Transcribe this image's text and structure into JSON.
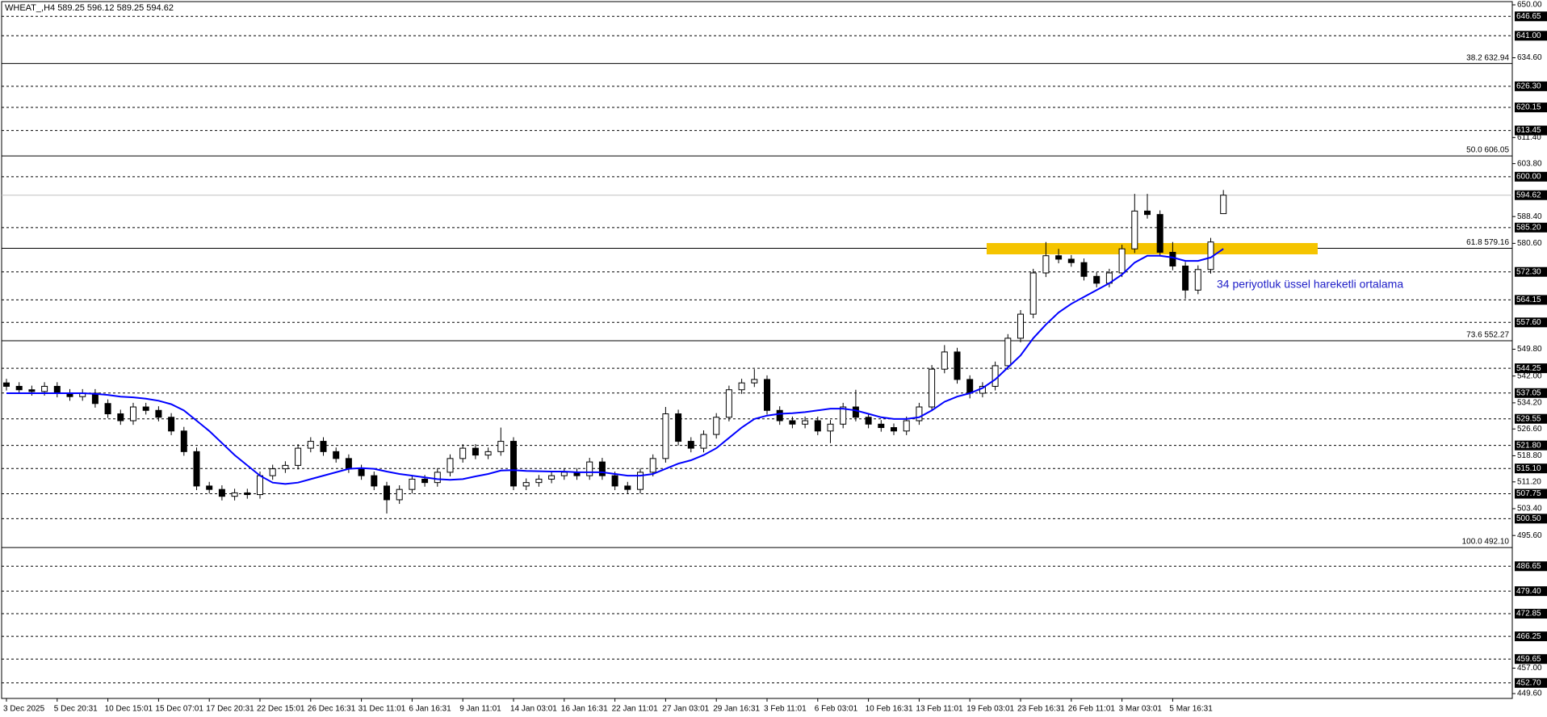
{
  "chart_data": {
    "type": "candlestick",
    "title": "WHEAT_,H4  589.25 596.12 589.25 594.62",
    "annotation": "34 periyotluk üssel hareketli ortalama",
    "bull_color": "#ffffff",
    "bear_color": "#000000",
    "ylim": [
      449.6,
      650
    ],
    "yticks": [
      {
        "value": 650,
        "label": "650.00"
      },
      {
        "value": 634.6,
        "label": "634.60"
      },
      {
        "value": 611.4,
        "label": "611.40"
      },
      {
        "value": 603.8,
        "label": "603.80"
      },
      {
        "value": 588.4,
        "label": "588.40"
      },
      {
        "value": 580.6,
        "label": "580.60"
      },
      {
        "value": 549.8,
        "label": "549.80"
      },
      {
        "value": 542,
        "label": "542.00"
      },
      {
        "value": 534.2,
        "label": "534.20"
      },
      {
        "value": 526.6,
        "label": "526.60"
      },
      {
        "value": 518.8,
        "label": "518.80"
      },
      {
        "value": 511.2,
        "label": "511.20"
      },
      {
        "value": 503.4,
        "label": "503.40"
      },
      {
        "value": 495.6,
        "label": "495.60"
      },
      {
        "value": 457,
        "label": "457.00"
      },
      {
        "value": 449.6,
        "label": "449.60"
      }
    ],
    "levels": [
      {
        "value": 646.65,
        "label": "646.65"
      },
      {
        "value": 641,
        "label": "641.00"
      },
      {
        "value": 626.3,
        "label": "626.30"
      },
      {
        "value": 620.15,
        "label": "620.15"
      },
      {
        "value": 613.45,
        "label": "613.45"
      },
      {
        "value": 600,
        "label": "600.00"
      },
      {
        "value": 585.2,
        "label": "585.20"
      },
      {
        "value": 572.3,
        "label": "572.30"
      },
      {
        "value": 564.15,
        "label": "564.15"
      },
      {
        "value": 557.6,
        "label": "557.60"
      },
      {
        "value": 544.25,
        "label": "544.25"
      },
      {
        "value": 537.05,
        "label": "537.05"
      },
      {
        "value": 529.55,
        "label": "529.55"
      },
      {
        "value": 521.8,
        "label": "521.80"
      },
      {
        "value": 515.1,
        "label": "515.10"
      },
      {
        "value": 507.75,
        "label": "507.75"
      },
      {
        "value": 500.5,
        "label": "500.50"
      },
      {
        "value": 486.65,
        "label": "486.65"
      },
      {
        "value": 479.4,
        "label": "479.40"
      },
      {
        "value": 472.85,
        "label": "472.85"
      },
      {
        "value": 466.25,
        "label": "466.25"
      },
      {
        "value": 459.65,
        "label": "459.65"
      },
      {
        "value": 452.7,
        "label": "452.70"
      }
    ],
    "fib_levels": [
      {
        "value": 632.94,
        "label": "38.2 632.94"
      },
      {
        "value": 606.05,
        "label": "50.0 606.05"
      },
      {
        "value": 579.16,
        "label": "61.8 579.16"
      },
      {
        "value": 552.27,
        "label": "73.6 552.27"
      },
      {
        "value": 492.1,
        "label": "100.0 492.10"
      }
    ],
    "last_price": {
      "value": 594.62,
      "label": "594.62"
    },
    "categories": [
      "3 Dec 2025",
      null,
      null,
      null,
      "5 Dec 20:31",
      null,
      null,
      null,
      "10 Dec 15:01",
      null,
      null,
      null,
      "15 Dec 07:01",
      null,
      null,
      null,
      "17 Dec 20:31",
      null,
      null,
      null,
      "22 Dec 15:01",
      null,
      null,
      null,
      "26 Dec 16:31",
      null,
      null,
      null,
      "31 Dec 11:01",
      null,
      null,
      null,
      "6 Jan 16:31",
      null,
      null,
      null,
      "9 Jan 11:01",
      null,
      null,
      null,
      "14 Jan 03:01",
      null,
      null,
      null,
      "16 Jan 16:31",
      null,
      null,
      null,
      "22 Jan 11:01",
      null,
      null,
      null,
      "27 Jan 03:01",
      null,
      null,
      null,
      "29 Jan 16:31",
      null,
      null,
      null,
      "3 Feb 11:01",
      null,
      null,
      null,
      "6 Feb 03:01",
      null,
      null,
      null,
      "10 Feb 16:31",
      null,
      null,
      null,
      "13 Feb 11:01",
      null,
      null,
      null,
      "19 Feb 03:01",
      null,
      null,
      null,
      "23 Feb 16:31",
      null,
      null,
      null,
      "26 Feb 11:01",
      null,
      null,
      null,
      "3 Mar 03:01",
      null,
      null,
      null,
      "5 Mar 16:31",
      null,
      null,
      null,
      null
    ],
    "ohlc": [
      [
        540,
        541.2,
        537.8,
        539
      ],
      [
        539,
        540.2,
        536.8,
        538
      ],
      [
        538,
        539.2,
        536.3,
        537.5
      ],
      [
        537.5,
        540.2,
        536.3,
        539
      ],
      [
        539,
        540.2,
        535.8,
        537
      ],
      [
        537,
        538.2,
        534.8,
        536
      ],
      [
        536,
        538.2,
        534.8,
        537
      ],
      [
        537,
        538.2,
        532.8,
        534
      ],
      [
        534,
        535.2,
        529.8,
        531
      ],
      [
        531,
        532.2,
        527.8,
        529
      ],
      [
        529,
        534.2,
        527.8,
        533
      ],
      [
        533,
        534.2,
        530.8,
        532
      ],
      [
        532,
        533.2,
        528.8,
        530
      ],
      [
        530,
        531.2,
        524.8,
        526
      ],
      [
        526,
        527.2,
        518.8,
        520
      ],
      [
        520,
        521.2,
        508.8,
        510
      ],
      [
        510,
        511.2,
        507.8,
        509
      ],
      [
        509,
        510.2,
        505.8,
        507
      ],
      [
        507,
        509.2,
        505.8,
        508
      ],
      [
        508,
        509.2,
        506.3,
        507.5
      ],
      [
        507.5,
        514.2,
        506.3,
        513
      ],
      [
        513,
        516.2,
        511.8,
        515
      ],
      [
        515,
        517.2,
        513.8,
        516
      ],
      [
        516,
        522.2,
        514.8,
        521
      ],
      [
        521,
        524.2,
        519.8,
        523
      ],
      [
        523,
        524.2,
        518.8,
        520
      ],
      [
        520,
        521.2,
        516.8,
        518
      ],
      [
        518,
        519.2,
        513.8,
        515
      ],
      [
        515,
        516.2,
        511.8,
        513
      ],
      [
        513,
        514.2,
        508.8,
        510
      ],
      [
        510,
        511.2,
        502,
        506
      ],
      [
        506,
        510.2,
        504.8,
        509
      ],
      [
        509,
        513.2,
        507.8,
        512
      ],
      [
        512,
        513.2,
        509.8,
        511
      ],
      [
        511,
        515.2,
        509.8,
        514
      ],
      [
        514,
        519.2,
        512.8,
        518
      ],
      [
        518,
        522.2,
        516.8,
        521
      ],
      [
        521,
        522.2,
        517.8,
        519
      ],
      [
        519,
        521.2,
        517.8,
        520
      ],
      [
        520,
        527,
        518.8,
        523
      ],
      [
        523,
        524.2,
        508.8,
        510
      ],
      [
        510,
        512.2,
        508.8,
        511
      ],
      [
        511,
        513.2,
        509.8,
        512
      ],
      [
        512,
        514.2,
        510.8,
        513
      ],
      [
        513,
        515.2,
        511.8,
        514
      ],
      [
        514,
        515.2,
        511.8,
        513
      ],
      [
        513,
        518.2,
        511.8,
        517
      ],
      [
        517,
        518.2,
        511.8,
        513
      ],
      [
        513,
        514.2,
        508.8,
        510
      ],
      [
        510,
        511.2,
        507.8,
        509
      ],
      [
        509,
        515.2,
        507.8,
        514
      ],
      [
        514,
        519.2,
        512.8,
        518
      ],
      [
        518,
        533,
        516.8,
        531
      ],
      [
        531,
        532.2,
        521.8,
        523
      ],
      [
        523,
        524.2,
        519.8,
        521
      ],
      [
        521,
        526.2,
        519.8,
        525
      ],
      [
        525,
        531.2,
        523.8,
        530
      ],
      [
        530,
        539.2,
        528.8,
        538
      ],
      [
        538,
        541.2,
        536.8,
        540
      ],
      [
        540,
        544,
        538.8,
        541
      ],
      [
        541,
        542.2,
        530.8,
        532
      ],
      [
        532,
        533.2,
        527.8,
        529
      ],
      [
        529,
        530.2,
        526.8,
        528
      ],
      [
        528,
        530.2,
        526.8,
        529
      ],
      [
        529,
        530.2,
        524.8,
        526
      ],
      [
        526,
        529.2,
        522.5,
        528
      ],
      [
        528,
        534.2,
        526.8,
        533
      ],
      [
        533,
        538,
        528.8,
        530
      ],
      [
        530,
        531.2,
        526.8,
        528
      ],
      [
        528,
        529.2,
        525.8,
        527
      ],
      [
        527,
        528.2,
        524.8,
        526
      ],
      [
        526,
        530.2,
        524.8,
        529
      ],
      [
        529,
        534.2,
        527.8,
        533
      ],
      [
        533,
        545.2,
        531.8,
        544
      ],
      [
        544,
        551,
        542.8,
        549
      ],
      [
        549,
        550.2,
        539.8,
        541
      ],
      [
        541,
        542.2,
        535.5,
        537
      ],
      [
        537,
        540.2,
        535.8,
        539
      ],
      [
        539,
        546.2,
        537.8,
        545
      ],
      [
        545,
        554.2,
        543.8,
        553
      ],
      [
        553,
        561.2,
        551.8,
        560
      ],
      [
        560,
        573.2,
        558.8,
        572
      ],
      [
        572,
        581,
        570.8,
        577
      ],
      [
        577,
        579,
        574.8,
        576
      ],
      [
        576,
        577.2,
        573.8,
        575
      ],
      [
        575,
        576.2,
        569.8,
        571
      ],
      [
        571,
        572.2,
        567.8,
        569
      ],
      [
        569,
        573.2,
        567.8,
        572
      ],
      [
        572,
        580.2,
        570.8,
        579
      ],
      [
        579,
        595,
        577.8,
        590
      ],
      [
        590,
        595,
        587.8,
        589
      ],
      [
        589,
        590.2,
        576.8,
        578
      ],
      [
        578,
        581,
        572.8,
        574
      ],
      [
        574,
        575.2,
        564.5,
        567
      ],
      [
        567,
        574.2,
        565.8,
        573
      ],
      [
        573,
        582.2,
        571.8,
        581
      ],
      [
        589.25,
        596.12,
        589.25,
        594.62
      ]
    ],
    "moving_average": {
      "color": "#0000ff",
      "values": [
        537,
        537,
        537,
        537,
        537,
        537,
        537,
        536.8,
        536.5,
        536,
        535.8,
        535.4,
        534.8,
        533.8,
        532,
        529,
        526,
        522.5,
        519,
        516,
        513,
        511,
        510.6,
        511,
        512,
        513,
        514,
        515,
        515.2,
        515,
        514.2,
        513.5,
        513,
        512.5,
        512,
        511.8,
        512,
        512.8,
        513.5,
        514.5,
        514.6,
        514.4,
        514.3,
        514.2,
        514.2,
        514,
        514,
        514,
        513.5,
        513,
        513,
        513.5,
        515,
        516.5,
        517.5,
        519,
        521,
        524,
        527,
        529.5,
        530.5,
        531,
        531.2,
        531.5,
        532,
        532.5,
        532.5,
        532,
        531,
        530,
        529.5,
        529.5,
        530,
        532,
        534.5,
        536,
        537,
        538.5,
        541,
        544.5,
        548,
        553,
        557,
        560.5,
        563,
        565,
        567,
        569,
        571.5,
        575,
        577,
        577,
        576.5,
        575.5,
        575.5,
        576.5,
        579
      ]
    }
  }
}
